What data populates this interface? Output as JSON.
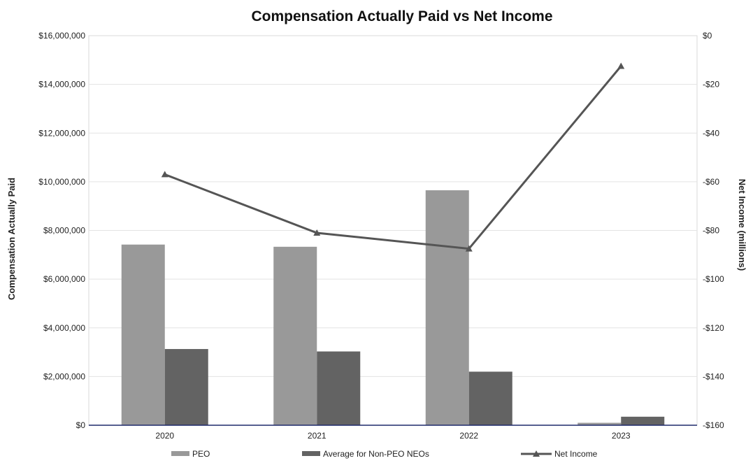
{
  "chart_data": {
    "type": "bar",
    "title": "Compensation Actually Paid vs Net Income",
    "categories": [
      "2020",
      "2021",
      "2022",
      "2023"
    ],
    "ylabel": "Compensation Actually Paid",
    "y2label": "Net Income (millions)",
    "ylim": [
      0,
      16000000
    ],
    "y2lim": [
      -160,
      0
    ],
    "y_ticks": [
      "$0",
      "$2,000,000",
      "$4,000,000",
      "$6,000,000",
      "$8,000,000",
      "$10,000,000",
      "$12,000,000",
      "$14,000,000",
      "$16,000,000"
    ],
    "y2_ticks": [
      "-$160",
      "-$140",
      "-$120",
      "-$100",
      "-$80",
      "-$60",
      "-$40",
      "-$20",
      "$0"
    ],
    "series": [
      {
        "name": "PEO",
        "type": "bar",
        "axis": "left",
        "color": "#999999",
        "values": [
          7420000,
          7330000,
          9650000,
          100000
        ]
      },
      {
        "name": "Average for Non-PEO NEOs",
        "type": "bar",
        "axis": "left",
        "color": "#636363",
        "values": [
          3130000,
          3030000,
          2200000,
          350000
        ]
      },
      {
        "name": "Net Income",
        "type": "line",
        "axis": "right",
        "color": "#555555",
        "marker": "triangle",
        "values": [
          -57,
          -81,
          -87.5,
          -12.5
        ]
      }
    ],
    "grid": true,
    "legend_position": "bottom"
  }
}
